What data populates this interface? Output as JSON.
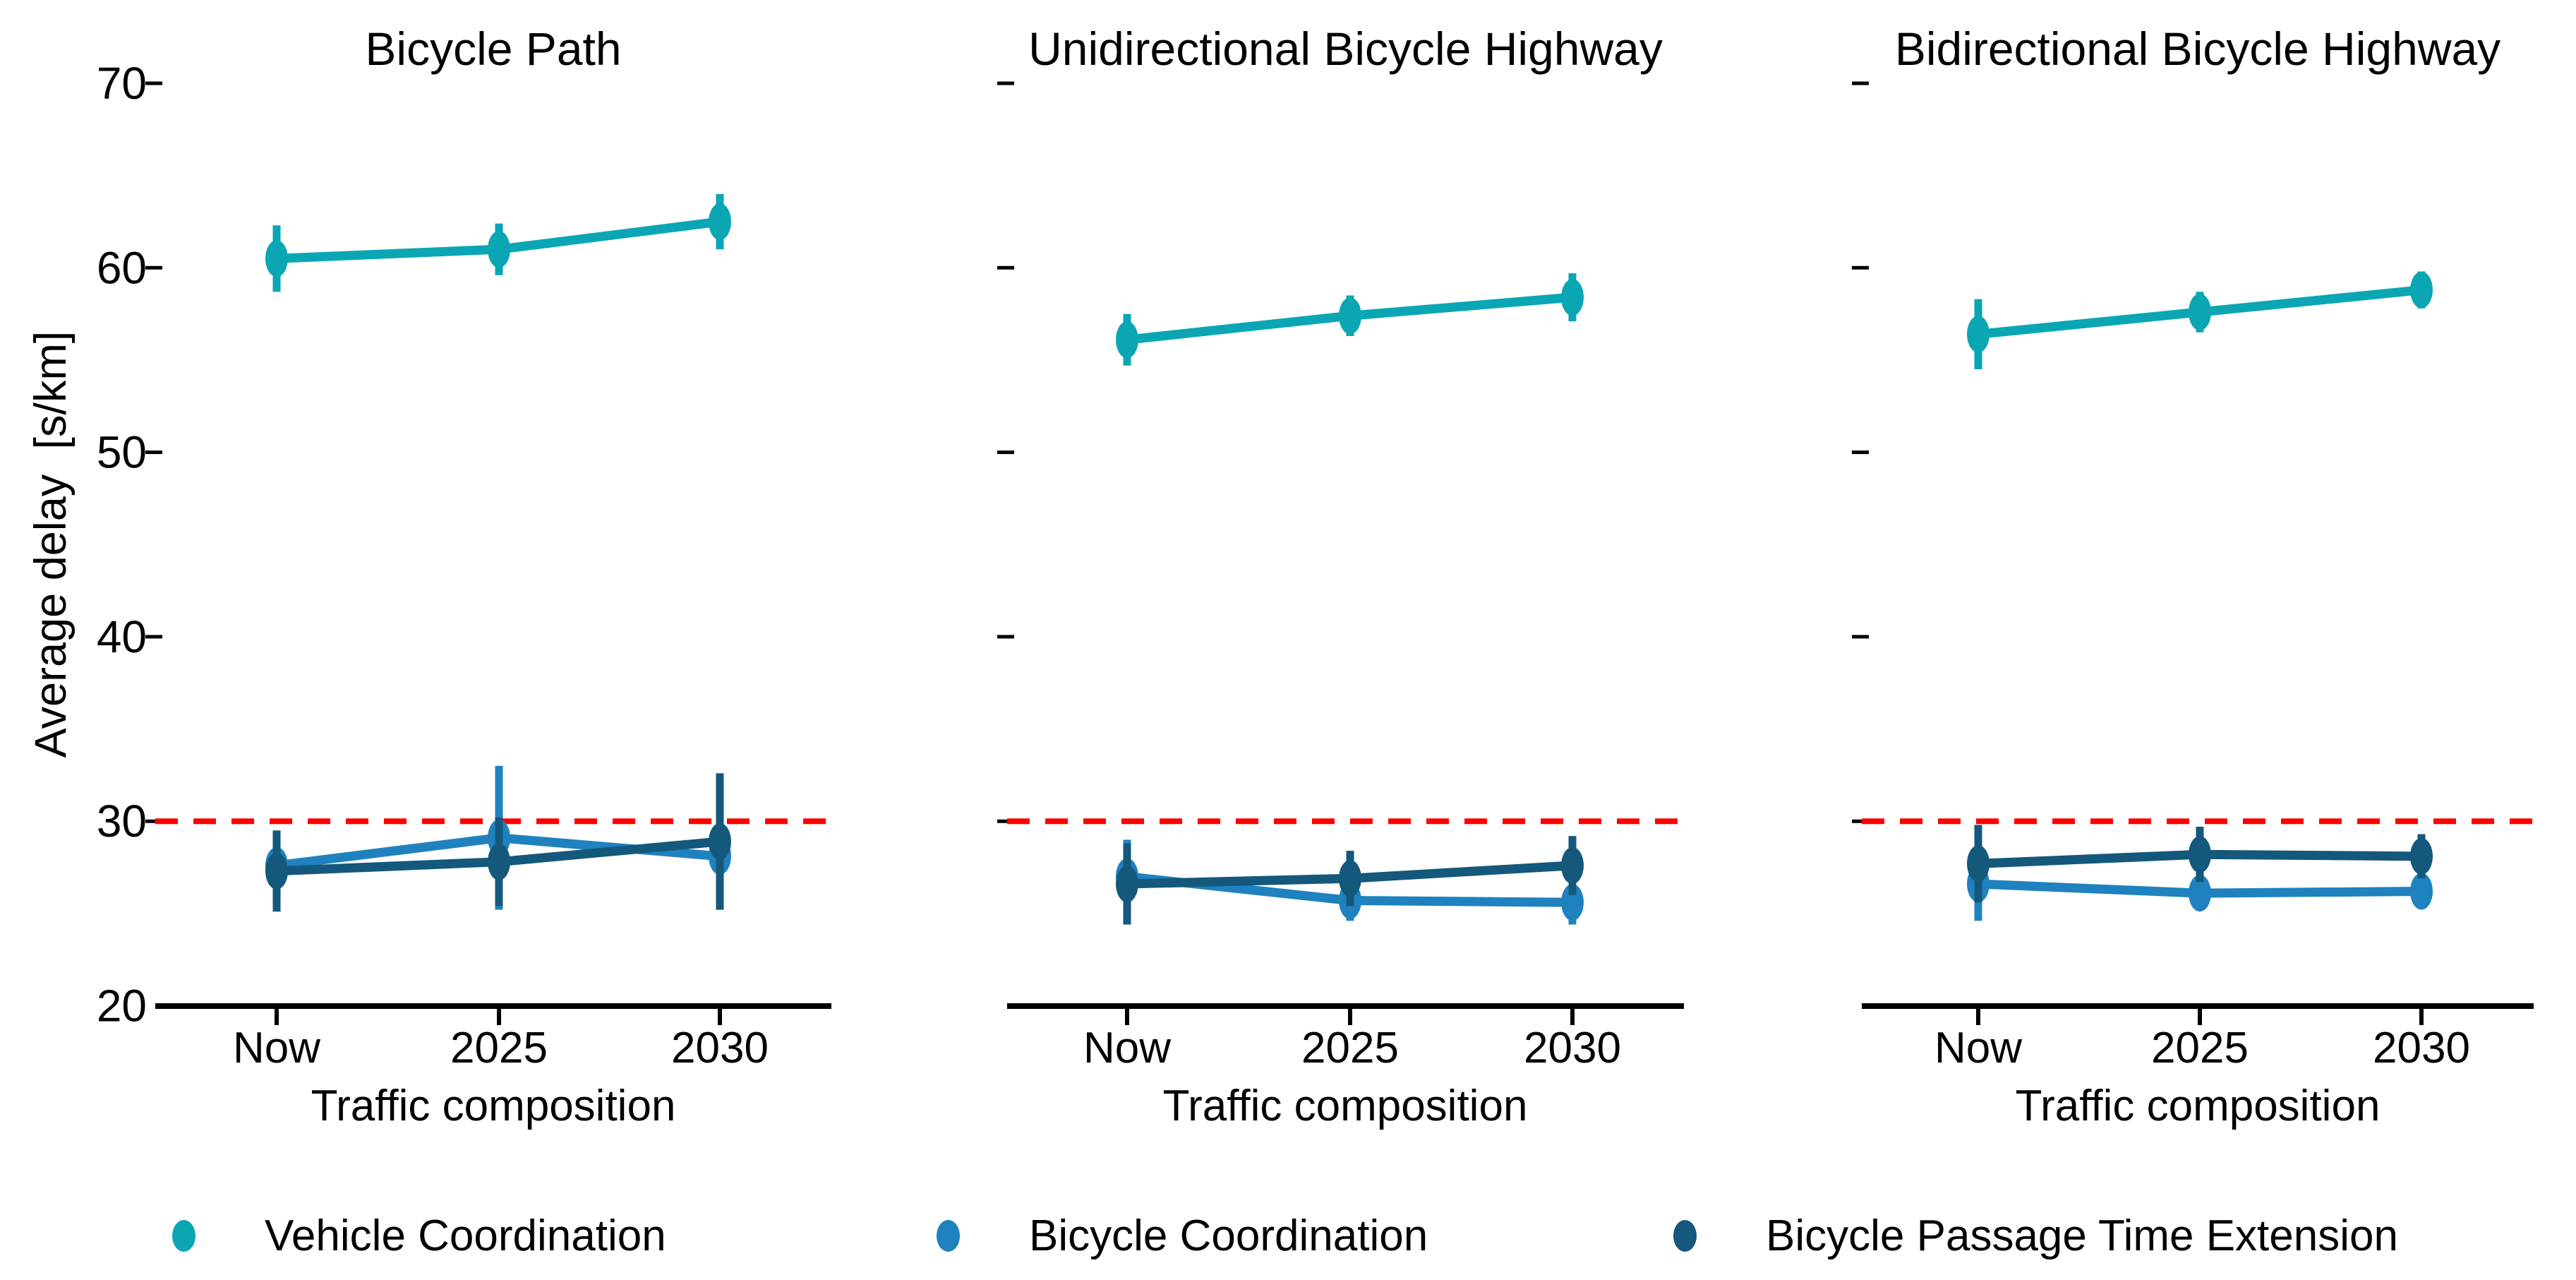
{
  "chart_data": {
    "type": "line",
    "ylabel": "Average delay  [s/km]",
    "xlabel": "Traffic composition",
    "categories": [
      "Now",
      "2025",
      "2030"
    ],
    "y_ticks": [
      70,
      60,
      50,
      40,
      30,
      20
    ],
    "ylim": [
      18.5,
      72
    ],
    "grid": false,
    "axis_color": "#000000",
    "reference_line": {
      "value": 30,
      "color": "#FF0000",
      "style": "dashed"
    },
    "legend": {
      "position": "bottom",
      "items": [
        {
          "label": "Vehicle Coordination",
          "color": "#0AA6B4"
        },
        {
          "label": "Bicycle Coordination",
          "color": "#1F82BE"
        },
        {
          "label": "Bicycle Passage Time Extension",
          "color": "#14587C"
        }
      ]
    },
    "panels": [
      {
        "title": "Bicycle Path",
        "series": [
          {
            "name": "Vehicle Coordination",
            "values": [
              60.5,
              61.0,
              62.5
            ],
            "errors": [
              1.8,
              1.4,
              1.5
            ]
          },
          {
            "name": "Bicycle Coordination",
            "values": [
              27.6,
              29.1,
              28.1
            ],
            "errors": [
              1.0,
              3.9,
              2.6
            ]
          },
          {
            "name": "Bicycle Passage Time Extension",
            "values": [
              27.3,
              27.8,
              28.9
            ],
            "errors": [
              2.2,
              2.4,
              3.7
            ]
          }
        ]
      },
      {
        "title": "Unidirectional Bicycle Highway",
        "series": [
          {
            "name": "Vehicle Coordination",
            "values": [
              56.1,
              57.4,
              58.4
            ],
            "errors": [
              1.4,
              1.1,
              1.3
            ]
          },
          {
            "name": "Bicycle Coordination",
            "values": [
              27.0,
              25.7,
              25.6
            ],
            "errors": [
              2.0,
              1.1,
              1.2
            ]
          },
          {
            "name": "Bicycle Passage Time Extension",
            "values": [
              26.6,
              26.9,
              27.6
            ],
            "errors": [
              2.2,
              1.5,
              1.6
            ]
          }
        ]
      },
      {
        "title": "Bidirectional Bicycle Highway",
        "series": [
          {
            "name": "Vehicle Coordination",
            "values": [
              56.4,
              57.6,
              58.8
            ],
            "errors": [
              1.9,
              1.1,
              1.0
            ]
          },
          {
            "name": "Bicycle Coordination",
            "values": [
              26.6,
              26.1,
              26.2
            ],
            "errors": [
              2.0,
              0.9,
              0.9
            ]
          },
          {
            "name": "Bicycle Passage Time Extension",
            "values": [
              27.7,
              28.2,
              28.1
            ],
            "errors": [
              2.1,
              1.5,
              1.2
            ]
          }
        ]
      }
    ]
  }
}
